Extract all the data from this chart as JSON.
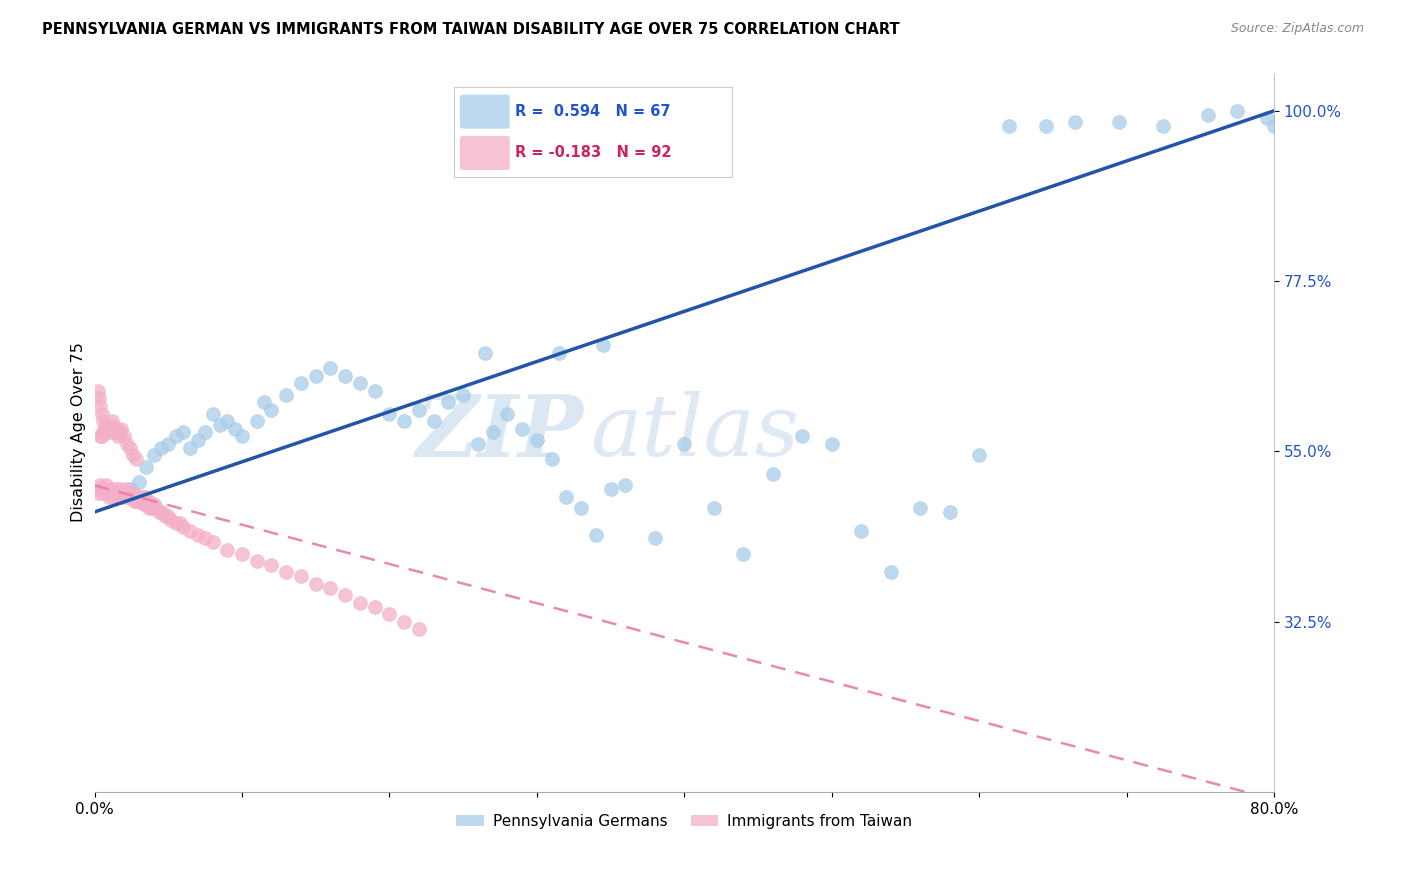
{
  "title": "PENNSYLVANIA GERMAN VS IMMIGRANTS FROM TAIWAN DISABILITY AGE OVER 75 CORRELATION CHART",
  "source": "Source: ZipAtlas.com",
  "ylabel": "Disability Age Over 75",
  "x_min": 0.0,
  "x_max": 0.8,
  "y_min": 0.1,
  "y_max": 1.05,
  "x_ticks": [
    0.0,
    0.1,
    0.2,
    0.3,
    0.4,
    0.5,
    0.6,
    0.7,
    0.8
  ],
  "x_tick_labels": [
    "0.0%",
    "",
    "",
    "",
    "",
    "",
    "",
    "",
    "80.0%"
  ],
  "y_ticks": [
    0.325,
    0.55,
    0.775,
    1.0
  ],
  "y_tick_labels": [
    "32.5%",
    "55.0%",
    "77.5%",
    "100.0%"
  ],
  "blue_R": 0.594,
  "blue_N": 67,
  "pink_R": -0.183,
  "pink_N": 92,
  "blue_color": "#a8cce8",
  "pink_color": "#f4afc8",
  "blue_line_color": "#2255aa",
  "pink_line_color": "#e87aaa",
  "watermark_zip": "ZIP",
  "watermark_atlas": "atlas",
  "legend_blue_label": "Pennsylvania Germans",
  "legend_pink_label": "Immigrants from Taiwan",
  "blue_x": [
    0.025,
    0.03,
    0.035,
    0.04,
    0.045,
    0.05,
    0.055,
    0.06,
    0.065,
    0.07,
    0.075,
    0.08,
    0.085,
    0.09,
    0.095,
    0.1,
    0.11,
    0.115,
    0.12,
    0.13,
    0.14,
    0.15,
    0.16,
    0.17,
    0.18,
    0.19,
    0.2,
    0.21,
    0.22,
    0.23,
    0.24,
    0.25,
    0.26,
    0.27,
    0.28,
    0.29,
    0.3,
    0.31,
    0.32,
    0.33,
    0.34,
    0.35,
    0.36,
    0.38,
    0.4,
    0.42,
    0.44,
    0.46,
    0.48,
    0.5,
    0.52,
    0.54,
    0.56,
    0.58,
    0.6,
    0.265,
    0.315,
    0.345,
    0.62,
    0.645,
    0.665,
    0.695,
    0.725,
    0.755,
    0.775,
    0.795,
    0.8
  ],
  "blue_y": [
    0.5,
    0.51,
    0.53,
    0.545,
    0.555,
    0.56,
    0.57,
    0.575,
    0.555,
    0.565,
    0.575,
    0.6,
    0.585,
    0.59,
    0.58,
    0.57,
    0.59,
    0.615,
    0.605,
    0.625,
    0.64,
    0.65,
    0.66,
    0.65,
    0.64,
    0.63,
    0.6,
    0.59,
    0.605,
    0.59,
    0.615,
    0.625,
    0.56,
    0.575,
    0.6,
    0.58,
    0.565,
    0.54,
    0.49,
    0.475,
    0.44,
    0.5,
    0.505,
    0.435,
    0.56,
    0.475,
    0.415,
    0.52,
    0.57,
    0.56,
    0.445,
    0.39,
    0.475,
    0.47,
    0.545,
    0.68,
    0.68,
    0.69,
    0.98,
    0.98,
    0.985,
    0.985,
    0.98,
    0.995,
    1.0,
    0.99,
    0.98
  ],
  "pink_x": [
    0.002,
    0.003,
    0.004,
    0.005,
    0.006,
    0.007,
    0.008,
    0.009,
    0.01,
    0.011,
    0.012,
    0.013,
    0.014,
    0.015,
    0.016,
    0.017,
    0.018,
    0.019,
    0.02,
    0.021,
    0.022,
    0.023,
    0.024,
    0.025,
    0.026,
    0.027,
    0.028,
    0.029,
    0.03,
    0.031,
    0.032,
    0.033,
    0.034,
    0.035,
    0.036,
    0.037,
    0.038,
    0.039,
    0.04,
    0.042,
    0.044,
    0.046,
    0.048,
    0.05,
    0.052,
    0.055,
    0.058,
    0.06,
    0.065,
    0.07,
    0.075,
    0.08,
    0.09,
    0.1,
    0.11,
    0.12,
    0.13,
    0.14,
    0.15,
    0.16,
    0.17,
    0.18,
    0.19,
    0.2,
    0.21,
    0.22,
    0.004,
    0.005,
    0.006,
    0.007,
    0.008,
    0.009,
    0.01,
    0.011,
    0.012,
    0.013,
    0.014,
    0.015,
    0.016,
    0.017,
    0.018,
    0.02,
    0.022,
    0.024,
    0.026,
    0.028,
    0.002,
    0.003,
    0.004,
    0.005,
    0.006,
    0.007
  ],
  "pink_y": [
    0.495,
    0.5,
    0.505,
    0.5,
    0.495,
    0.5,
    0.505,
    0.495,
    0.49,
    0.495,
    0.5,
    0.495,
    0.49,
    0.5,
    0.495,
    0.49,
    0.5,
    0.495,
    0.49,
    0.495,
    0.5,
    0.49,
    0.495,
    0.49,
    0.495,
    0.485,
    0.49,
    0.485,
    0.49,
    0.485,
    0.49,
    0.48,
    0.49,
    0.48,
    0.485,
    0.475,
    0.48,
    0.475,
    0.48,
    0.475,
    0.47,
    0.47,
    0.465,
    0.465,
    0.46,
    0.455,
    0.455,
    0.45,
    0.445,
    0.44,
    0.435,
    0.43,
    0.42,
    0.415,
    0.405,
    0.4,
    0.39,
    0.385,
    0.375,
    0.37,
    0.36,
    0.35,
    0.345,
    0.335,
    0.325,
    0.315,
    0.57,
    0.57,
    0.575,
    0.58,
    0.585,
    0.58,
    0.575,
    0.585,
    0.59,
    0.58,
    0.575,
    0.58,
    0.57,
    0.575,
    0.58,
    0.57,
    0.56,
    0.555,
    0.545,
    0.54,
    0.63,
    0.62,
    0.61,
    0.6,
    0.59,
    0.58
  ]
}
